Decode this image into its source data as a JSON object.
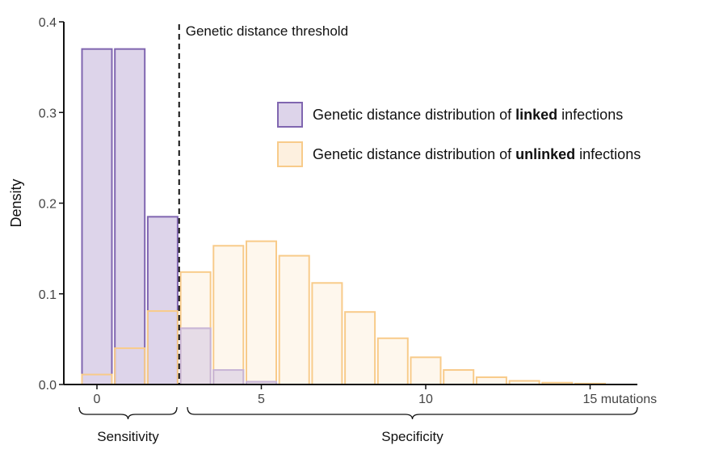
{
  "chart_data": {
    "type": "bar",
    "xlim": [
      -0.5,
      15.5
    ],
    "ylim": [
      0,
      0.4
    ],
    "yticks": [
      0.0,
      0.1,
      0.2,
      0.3,
      0.4
    ],
    "ytick_labels": [
      "0.0",
      "0.1",
      "0.2",
      "0.3",
      "0.4"
    ],
    "xticks": [
      0,
      5,
      10,
      15
    ],
    "xtick_labels": [
      "0",
      "5",
      "10",
      "15 mutations"
    ],
    "ylabel": "Density",
    "threshold": {
      "x": 2.5,
      "label": "Genetic distance threshold"
    },
    "series": [
      {
        "key": "linked",
        "legend_prefix": "Genetic distance distribution of ",
        "legend_bold": "linked",
        "legend_suffix": " infections",
        "stroke": "#8066b0",
        "fill": "#ddd4ea",
        "x": [
          0,
          1,
          2,
          3,
          4,
          5
        ],
        "values": [
          0.37,
          0.37,
          0.185,
          0.062,
          0.016,
          0.003
        ]
      },
      {
        "key": "unlinked",
        "legend_prefix": "Genetic distance distribution of ",
        "legend_bold": "unlinked",
        "legend_suffix": " infections",
        "stroke": "#f8cb8a",
        "fill": "#fdf0df",
        "x": [
          0,
          1,
          2,
          3,
          4,
          5,
          6,
          7,
          8,
          9,
          10,
          11,
          12,
          13,
          14,
          15
        ],
        "values": [
          0.011,
          0.04,
          0.081,
          0.124,
          0.153,
          0.158,
          0.142,
          0.112,
          0.08,
          0.051,
          0.03,
          0.016,
          0.008,
          0.004,
          0.002,
          0.001
        ]
      }
    ],
    "brackets": [
      {
        "label": "Sensitivity",
        "from": -0.5,
        "to": 2.5
      },
      {
        "label": "Specificity",
        "from": 2.75,
        "to": 16.5
      }
    ],
    "grid": false
  }
}
